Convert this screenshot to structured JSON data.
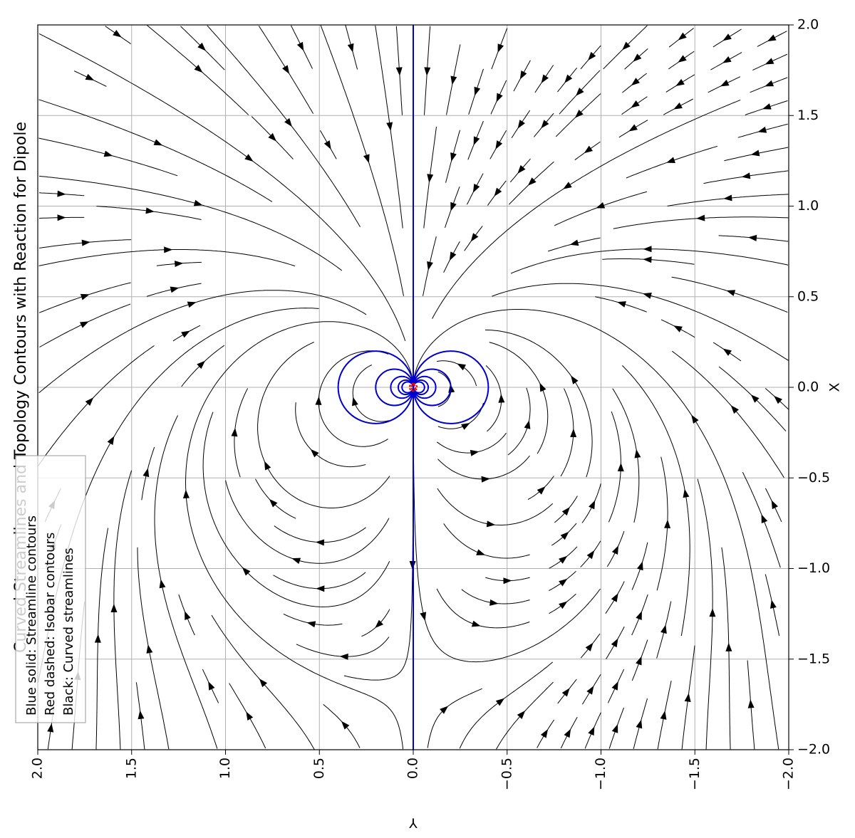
{
  "chart_data": {
    "type": "streamplot",
    "title": "Curved Streamlines and Topology Contours with Reaction for Dipole",
    "x_label": "X",
    "y_label": "Y",
    "xlim": [
      -2,
      2
    ],
    "ylim": [
      -2,
      2
    ],
    "xticks": [
      {
        "value": -2,
        "label": "−2.0"
      },
      {
        "value": -1.5,
        "label": "−1.5"
      },
      {
        "value": -1,
        "label": "−1.0"
      },
      {
        "value": -0.5,
        "label": "−0.5"
      },
      {
        "value": 0,
        "label": "0.0"
      },
      {
        "value": 0.5,
        "label": "0.5"
      },
      {
        "value": 1,
        "label": "1.0"
      },
      {
        "value": 1.5,
        "label": "1.5"
      },
      {
        "value": 2,
        "label": "2.0"
      }
    ],
    "yticks": [
      {
        "value": -2,
        "label": "−2.0"
      },
      {
        "value": -1.5,
        "label": "−1.5"
      },
      {
        "value": -1,
        "label": "−1.0"
      },
      {
        "value": -0.5,
        "label": "−0.5"
      },
      {
        "value": 0,
        "label": "0.0"
      },
      {
        "value": 0.5,
        "label": "0.5"
      },
      {
        "value": 1,
        "label": "1.0"
      },
      {
        "value": 1.5,
        "label": "1.5"
      },
      {
        "value": 2,
        "label": "2.0"
      }
    ],
    "grid": true,
    "legend_position": "upper left",
    "legend": [
      "Blue solid: Streamline contours",
      "Red dashed: Isobar contours",
      "Black: Curved streamlines"
    ],
    "colors": {
      "streamlines": "#000000",
      "contours": "#0000cc",
      "isobars": "#ff0000"
    }
  }
}
